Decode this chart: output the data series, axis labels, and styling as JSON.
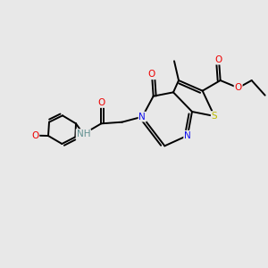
{
  "bg_color": "#e8e8e8",
  "atom_colors": {
    "N": "#1010ee",
    "O": "#ee0000",
    "S": "#bbbb00",
    "C": "#000000",
    "H": "#609090"
  },
  "bond_color": "#000000",
  "bond_width": 1.4,
  "figsize": [
    3.0,
    3.0
  ],
  "dpi": 100,
  "xlim": [
    0,
    10
  ],
  "ylim": [
    0,
    10
  ]
}
